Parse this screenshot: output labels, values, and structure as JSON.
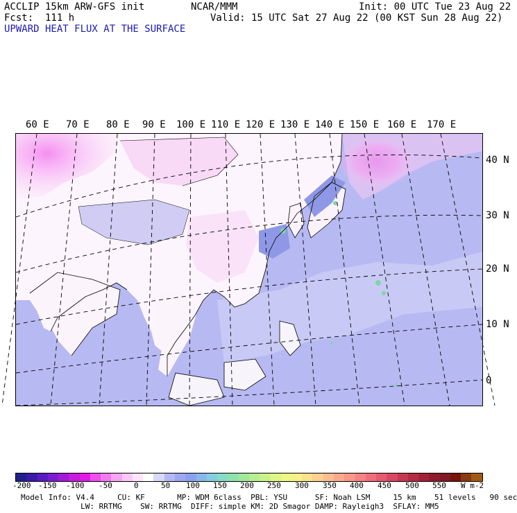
{
  "header": {
    "line1_left": "ACCLIP 15km ARW-GFS init",
    "line1_center": "NCAR/MMM",
    "line1_right": "Init: 00 UTC Tue 23 Aug 22",
    "line2_left": "Fcst:  111 h",
    "line2_right": "Valid: 15 UTC Sat 27 Aug 22 (00 KST Sun 28 Aug 22)",
    "field_title": "UPWARD HEAT FLUX AT THE SURFACE"
  },
  "map": {
    "lon_labels": [
      "60 E",
      "70 E",
      "80 E",
      "90 E",
      "100 E",
      "110 E",
      "120 E",
      "130 E",
      "140 E",
      "150 E",
      "160 E",
      "170 E"
    ],
    "lat_labels": [
      "40 N",
      "30 N",
      "20 N",
      "10 N",
      "0"
    ],
    "colors": {
      "ocean": "#b7b9f2",
      "land": "#ffffff",
      "positive_land": "#f5d6f3",
      "strong_positive": "#f266e8",
      "green_spots": "#7fd6a2"
    }
  },
  "colorbar": {
    "ticks": [
      "-200",
      "-150",
      "-100",
      "-50",
      "0",
      "50",
      "100",
      "150",
      "200",
      "250",
      "300",
      "350",
      "400",
      "450",
      "500",
      "550"
    ],
    "units": "W m-2",
    "colors": [
      "#20208c",
      "#3a1ca8",
      "#5a1cc0",
      "#7a1cd0",
      "#a01ad8",
      "#c81ae0",
      "#e61ae8",
      "#f04cee",
      "#f27af0",
      "#f6a4f4",
      "#f9c8f8",
      "#fde4fc",
      "#ffffff",
      "#d8d8f8",
      "#b4b8f4",
      "#9ea8f0",
      "#8aa2ee",
      "#88b8e8",
      "#86cce0",
      "#86dcc8",
      "#8ee2ac",
      "#a2e89a",
      "#b6ee92",
      "#caf28a",
      "#def686",
      "#eef884",
      "#f8f088",
      "#fae28c",
      "#fcd08e",
      "#fcbe90",
      "#fcaa8e",
      "#fa968a",
      "#f68284",
      "#f06e7c",
      "#e65a70",
      "#d84862",
      "#c83852",
      "#b62a44",
      "#a42038",
      "#921a2e",
      "#841626",
      "#78140c",
      "#8a3a10",
      "#a05a14"
    ]
  },
  "footer": {
    "line1": "Model Info: V4.4     CU: KF       MP: WDM 6class  PBL: YSU      SF: Noah LSM     15 km    51 levels   90 sec",
    "line2": "             LW: RRTMG    SW: RRTMG  DIFF: simple KM: 2D Smagor DAMP: Rayleigh3  SFLAY: MM5"
  }
}
